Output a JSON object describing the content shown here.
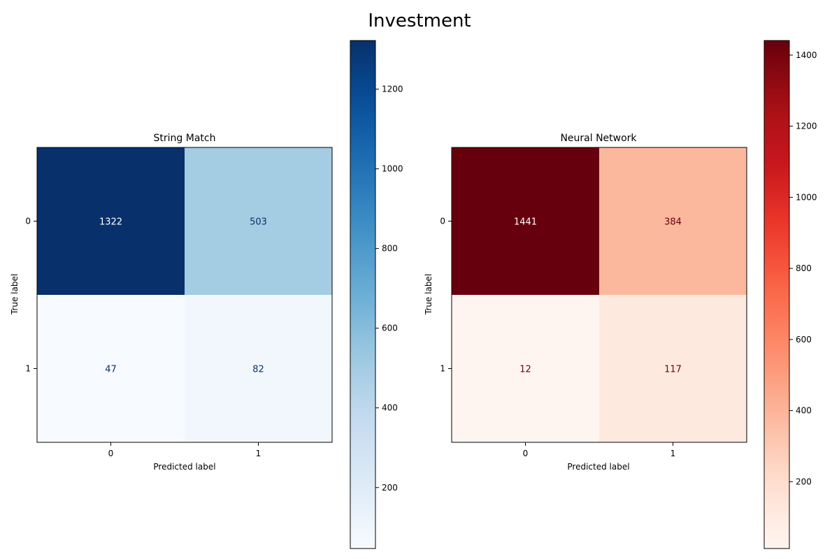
{
  "figure": {
    "title": "Investment"
  },
  "chart_data": [
    {
      "type": "heatmap",
      "title": "String Match",
      "xlabel": "Predicted label",
      "ylabel": "True label",
      "x_categories": [
        "0",
        "1"
      ],
      "y_categories": [
        "0",
        "1"
      ],
      "matrix": [
        [
          1322,
          503
        ],
        [
          47,
          82
        ]
      ],
      "colormap": "Blues",
      "colorbar": {
        "range": [
          47,
          1322
        ],
        "ticks": [
          200,
          400,
          600,
          800,
          1000,
          1200
        ]
      },
      "colors": {
        "low": "#f7fbff",
        "high": "#08306b",
        "text_dark": "#08306b",
        "text_light": "#ffffff"
      }
    },
    {
      "type": "heatmap",
      "title": "Neural Network",
      "xlabel": "Predicted label",
      "ylabel": "True label",
      "x_categories": [
        "0",
        "1"
      ],
      "y_categories": [
        "0",
        "1"
      ],
      "matrix": [
        [
          1441,
          384
        ],
        [
          12,
          117
        ]
      ],
      "colormap": "Reds",
      "colorbar": {
        "range": [
          12,
          1441
        ],
        "ticks": [
          200,
          400,
          600,
          800,
          1000,
          1200,
          1400
        ]
      },
      "colors": {
        "low": "#fff5f0",
        "high": "#67000d",
        "text_dark": "#67000d",
        "text_light": "#ffffff"
      }
    }
  ]
}
